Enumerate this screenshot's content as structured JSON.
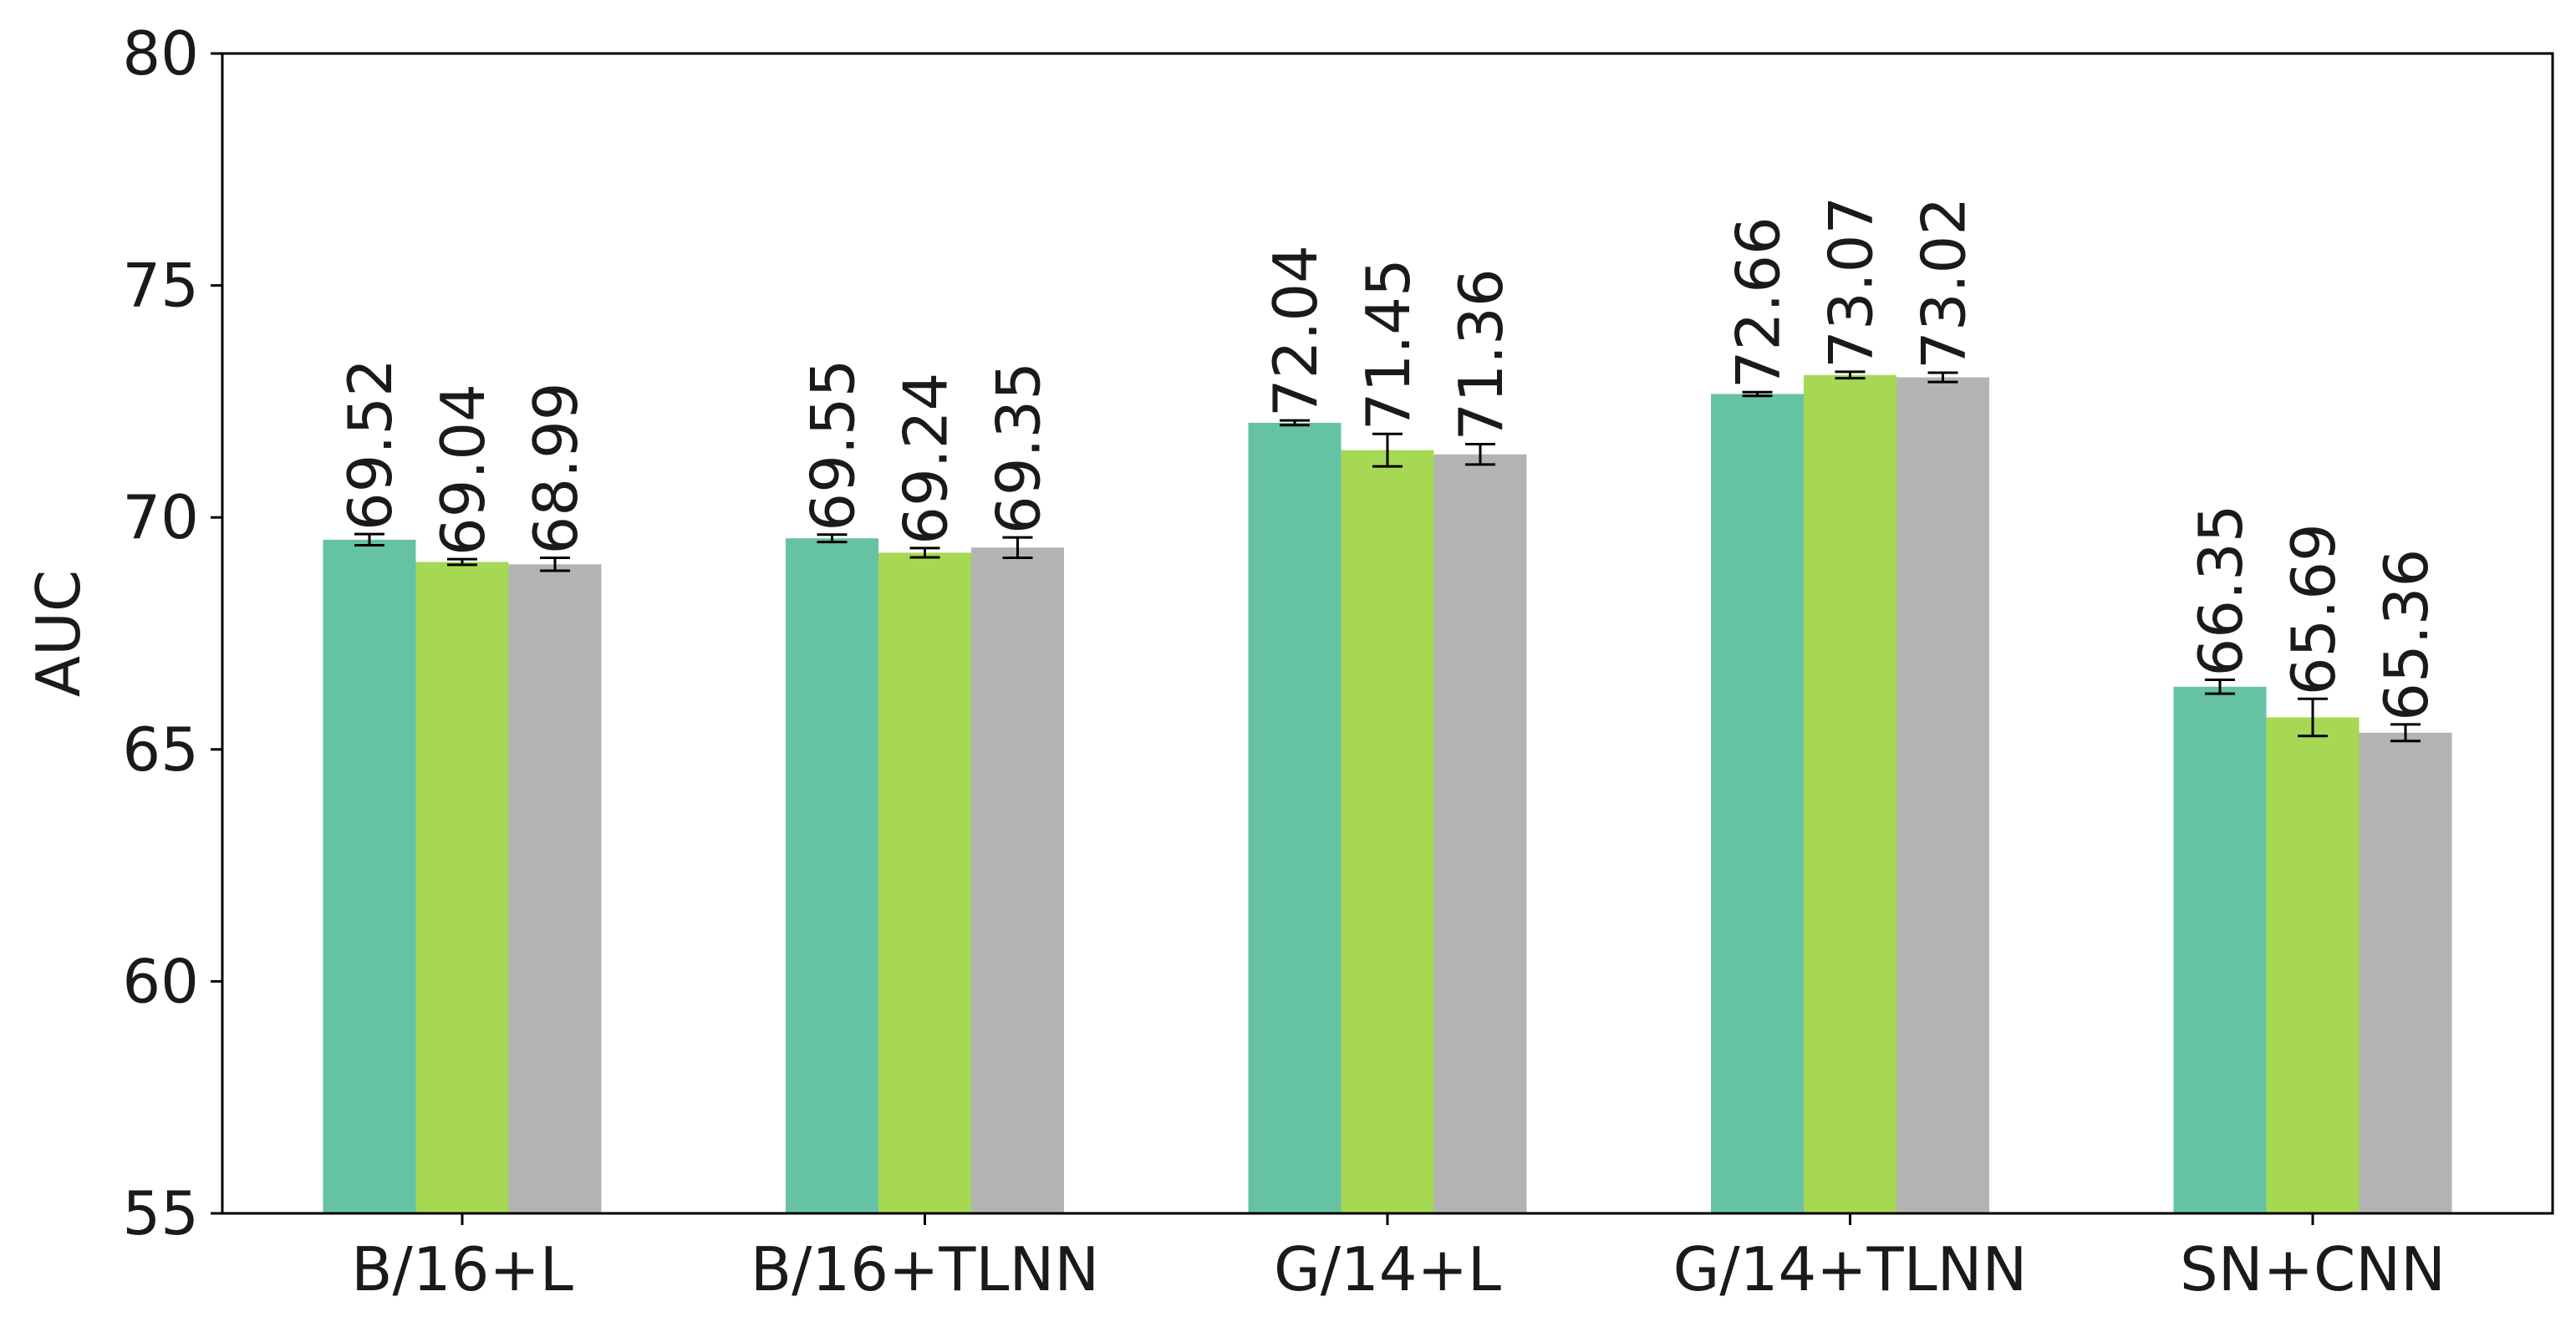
{
  "chart_data": {
    "type": "bar",
    "title": "",
    "xlabel": "",
    "ylabel": "AUC",
    "ylim": [
      55,
      80
    ],
    "yticks": [
      55,
      60,
      65,
      70,
      75,
      80
    ],
    "grid": false,
    "legend": "none",
    "categories": [
      "B/16+L",
      "B/16+TLNN",
      "G/14+L",
      "G/14+TLNN",
      "SN+CNN"
    ],
    "series": [
      {
        "color": "#66c2a5",
        "values": [
          69.52,
          69.55,
          72.04,
          72.66,
          66.35
        ],
        "errors": [
          0.12,
          0.08,
          0.05,
          0.04,
          0.15
        ],
        "labels": [
          "69.52",
          "69.55",
          "72.04",
          "72.66",
          "66.35"
        ]
      },
      {
        "color": "#a6d854",
        "values": [
          69.04,
          69.24,
          71.45,
          73.07,
          65.69
        ],
        "errors": [
          0.06,
          0.1,
          0.35,
          0.07,
          0.4
        ],
        "labels": [
          "69.04",
          "69.24",
          "71.45",
          "73.07",
          "65.69"
        ]
      },
      {
        "color": "#b3b3b3",
        "values": [
          68.99,
          69.35,
          71.36,
          73.02,
          65.36
        ],
        "errors": [
          0.14,
          0.22,
          0.22,
          0.1,
          0.18
        ],
        "labels": [
          "68.99",
          "69.35",
          "71.36",
          "73.02",
          "65.36"
        ]
      }
    ]
  }
}
